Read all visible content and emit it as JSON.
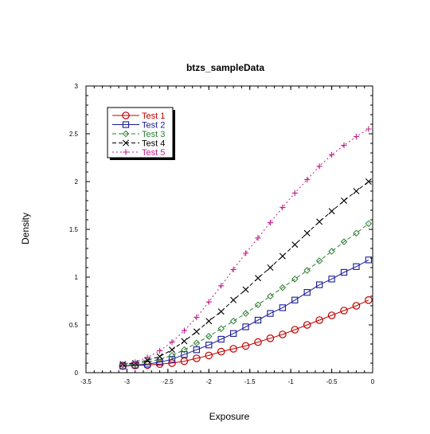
{
  "chart_data": {
    "type": "line",
    "title": "btzs_sampleData",
    "xlabel": "Exposure",
    "ylabel": "Density",
    "xlim": [
      -3.5,
      0
    ],
    "ylim": [
      0,
      3
    ],
    "x_ticks": [
      "-3.5",
      "-3",
      "-2.5",
      "-2",
      "-1.5",
      "-1",
      "-0.5",
      "0"
    ],
    "y_ticks": [
      "0",
      "0.5",
      "1",
      "1.5",
      "2",
      "2.5",
      "3"
    ],
    "grid": false,
    "legend_position": "top-left",
    "x": [
      -3.05,
      -2.9,
      -2.75,
      -2.6,
      -2.45,
      -2.3,
      -2.15,
      -2.0,
      -1.85,
      -1.7,
      -1.55,
      -1.4,
      -1.25,
      -1.1,
      -0.95,
      -0.8,
      -0.65,
      -0.5,
      -0.35,
      -0.2,
      -0.05
    ],
    "series": [
      {
        "name": "Test 1",
        "color": "#c00000",
        "marker": "circle",
        "dash": "solid",
        "values": [
          0.07,
          0.075,
          0.08,
          0.09,
          0.1,
          0.12,
          0.15,
          0.18,
          0.22,
          0.25,
          0.28,
          0.32,
          0.36,
          0.4,
          0.45,
          0.5,
          0.55,
          0.6,
          0.65,
          0.7,
          0.76
        ]
      },
      {
        "name": "Test 2",
        "color": "#1a1a99",
        "marker": "square",
        "dash": "solid",
        "values": [
          0.07,
          0.08,
          0.09,
          0.11,
          0.14,
          0.19,
          0.24,
          0.29,
          0.35,
          0.41,
          0.48,
          0.55,
          0.62,
          0.68,
          0.76,
          0.84,
          0.92,
          0.98,
          1.05,
          1.11,
          1.18
        ]
      },
      {
        "name": "Test 3",
        "color": "#2e7d32",
        "marker": "diamond",
        "dash": "dashed",
        "values": [
          0.08,
          0.09,
          0.11,
          0.14,
          0.18,
          0.24,
          0.31,
          0.38,
          0.46,
          0.54,
          0.62,
          0.71,
          0.8,
          0.89,
          0.98,
          1.07,
          1.17,
          1.27,
          1.37,
          1.46,
          1.56
        ]
      },
      {
        "name": "Test 4",
        "color": "#000000",
        "marker": "x",
        "dash": "dashed",
        "values": [
          0.09,
          0.1,
          0.13,
          0.17,
          0.24,
          0.33,
          0.43,
          0.54,
          0.64,
          0.76,
          0.87,
          0.99,
          1.1,
          1.22,
          1.34,
          1.46,
          1.58,
          1.69,
          1.8,
          1.9,
          2.0
        ]
      },
      {
        "name": "Test 5",
        "color": "#c0208a",
        "marker": "plus",
        "dash": "dotted",
        "values": [
          0.09,
          0.11,
          0.16,
          0.23,
          0.32,
          0.44,
          0.58,
          0.74,
          0.91,
          1.08,
          1.25,
          1.41,
          1.57,
          1.73,
          1.88,
          2.02,
          2.16,
          2.28,
          2.38,
          2.47,
          2.55
        ]
      }
    ]
  }
}
